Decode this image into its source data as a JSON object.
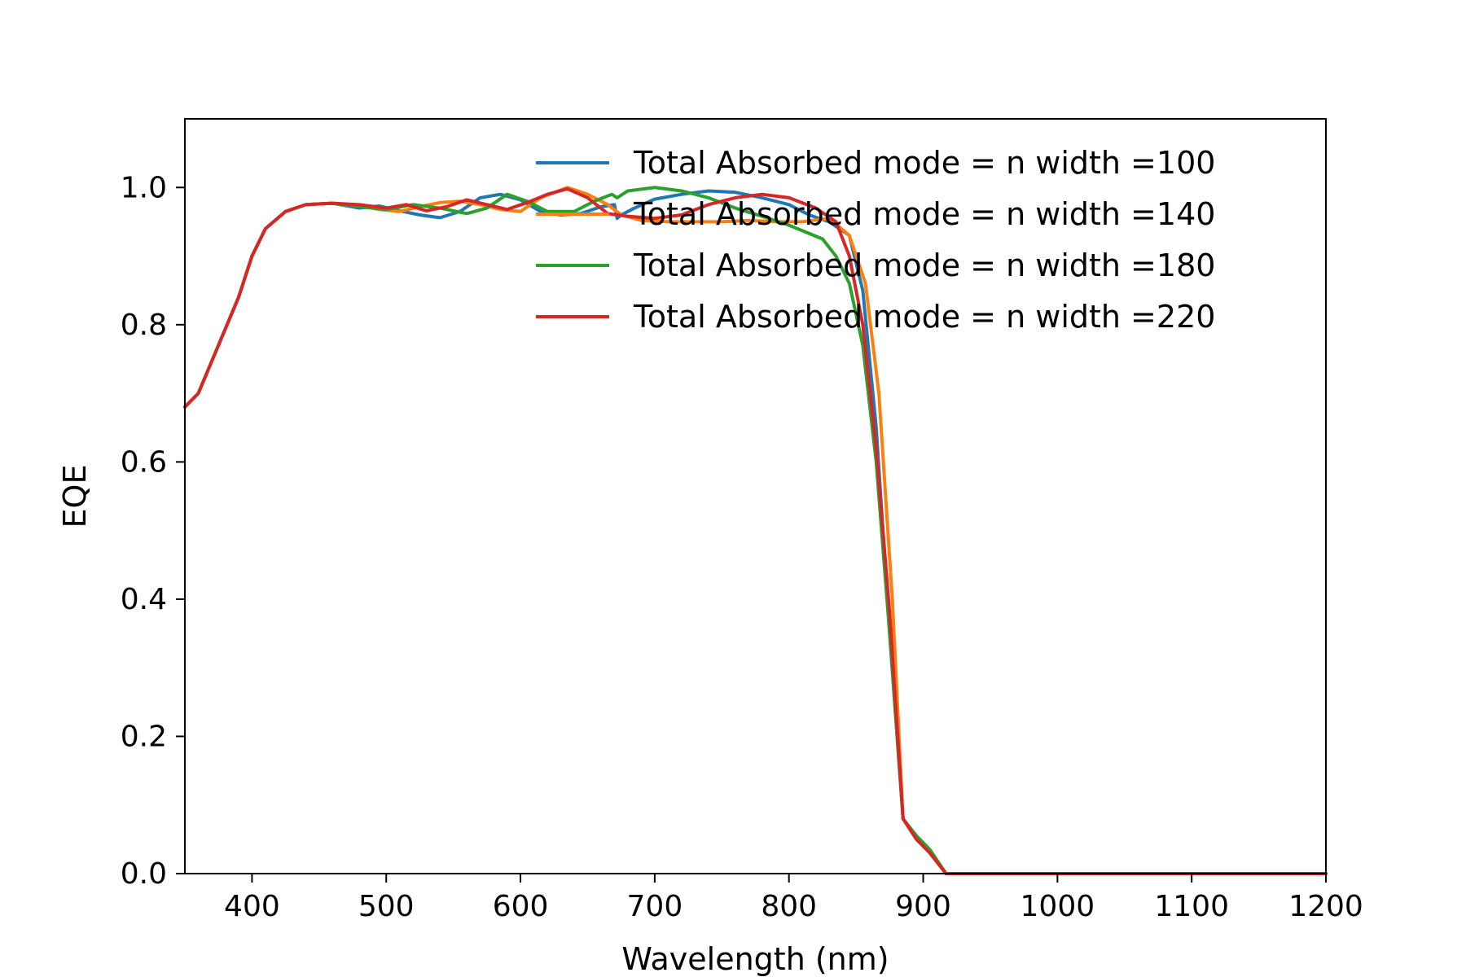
{
  "chart_data": {
    "type": "line",
    "title": "",
    "xlabel": "Wavelength (nm)",
    "ylabel": "EQE",
    "xlim": [
      350,
      1200
    ],
    "ylim": [
      0.0,
      1.1
    ],
    "xticks": [
      400,
      500,
      600,
      700,
      800,
      900,
      1000,
      1100,
      1200
    ],
    "xtick_labels": [
      "400",
      "500",
      "600",
      "700",
      "800",
      "900",
      "1000",
      "1100",
      "1200"
    ],
    "yticks": [
      0.0,
      0.2,
      0.4,
      0.6,
      0.8,
      1.0
    ],
    "ytick_labels": [
      "0.0",
      "0.2",
      "0.4",
      "0.6",
      "0.8",
      "1.0"
    ],
    "grid": false,
    "legend_position": "top-right",
    "series": [
      {
        "name": "Total Absorbed mode = n width  =100",
        "color": "#1f77b4",
        "x": [
          350,
          360,
          375,
          390,
          400,
          410,
          425,
          440,
          460,
          480,
          495,
          510,
          525,
          540,
          555,
          570,
          585,
          600,
          615,
          630,
          645,
          660,
          670,
          672,
          675,
          685,
          700,
          720,
          740,
          760,
          780,
          800,
          815,
          830,
          845,
          855,
          865,
          875,
          885,
          895,
          905,
          917,
          930,
          1000,
          1100,
          1200
        ],
        "y": [
          0.68,
          0.7,
          0.77,
          0.84,
          0.9,
          0.94,
          0.965,
          0.975,
          0.977,
          0.97,
          0.973,
          0.966,
          0.96,
          0.956,
          0.965,
          0.985,
          0.99,
          0.982,
          0.965,
          0.96,
          0.962,
          0.972,
          0.975,
          0.955,
          0.96,
          0.97,
          0.983,
          0.99,
          0.995,
          0.993,
          0.985,
          0.975,
          0.96,
          0.95,
          0.93,
          0.85,
          0.65,
          0.35,
          0.08,
          0.05,
          0.03,
          0.0,
          0.0,
          0.0,
          0.0,
          0.0
        ]
      },
      {
        "name": "Total Absorbed mode = n width  =140",
        "color": "#ff7f0e",
        "x": [
          350,
          360,
          375,
          390,
          400,
          410,
          425,
          440,
          460,
          480,
          495,
          510,
          525,
          540,
          555,
          570,
          585,
          600,
          615,
          635,
          650,
          665,
          675,
          690,
          710,
          730,
          750,
          770,
          790,
          810,
          830,
          845,
          857,
          867,
          877,
          885,
          895,
          905,
          917,
          930,
          1000,
          1100,
          1200
        ],
        "y": [
          0.68,
          0.7,
          0.77,
          0.84,
          0.9,
          0.94,
          0.965,
          0.975,
          0.977,
          0.973,
          0.968,
          0.965,
          0.972,
          0.978,
          0.98,
          0.975,
          0.968,
          0.965,
          0.985,
          1.0,
          0.99,
          0.975,
          0.96,
          0.952,
          0.95,
          0.95,
          0.95,
          0.952,
          0.95,
          0.95,
          0.955,
          0.93,
          0.86,
          0.7,
          0.4,
          0.08,
          0.05,
          0.03,
          0.0,
          0.0,
          0.0,
          0.0,
          0.0
        ]
      },
      {
        "name": "Total Absorbed mode = n width  =180",
        "color": "#2ca02c",
        "x": [
          350,
          360,
          375,
          390,
          400,
          410,
          425,
          440,
          460,
          480,
          500,
          520,
          540,
          560,
          575,
          590,
          605,
          620,
          640,
          655,
          668,
          672,
          680,
          700,
          720,
          740,
          760,
          780,
          800,
          825,
          835,
          845,
          855,
          865,
          875,
          885,
          895,
          905,
          917,
          930,
          1000,
          1100,
          1200
        ],
        "y": [
          0.68,
          0.7,
          0.77,
          0.84,
          0.9,
          0.94,
          0.965,
          0.975,
          0.977,
          0.972,
          0.968,
          0.975,
          0.97,
          0.962,
          0.97,
          0.99,
          0.98,
          0.965,
          0.965,
          0.98,
          0.99,
          0.985,
          0.995,
          1.0,
          0.995,
          0.985,
          0.97,
          0.958,
          0.945,
          0.925,
          0.9,
          0.86,
          0.77,
          0.6,
          0.35,
          0.08,
          0.055,
          0.035,
          0.0,
          0.0,
          0.0,
          0.0,
          0.0
        ]
      },
      {
        "name": "Total Absorbed mode = n width  =220",
        "color": "#d62728",
        "x": [
          350,
          360,
          375,
          390,
          400,
          410,
          425,
          440,
          460,
          480,
          500,
          515,
          530,
          545,
          560,
          575,
          590,
          605,
          620,
          635,
          650,
          665,
          680,
          700,
          720,
          740,
          760,
          780,
          800,
          820,
          835,
          845,
          855,
          865,
          875,
          885,
          895,
          905,
          917,
          930,
          1000,
          1100,
          1200
        ],
        "y": [
          0.68,
          0.7,
          0.77,
          0.84,
          0.9,
          0.94,
          0.965,
          0.975,
          0.977,
          0.975,
          0.97,
          0.975,
          0.966,
          0.972,
          0.982,
          0.975,
          0.968,
          0.978,
          0.99,
          0.998,
          0.985,
          0.962,
          0.958,
          0.955,
          0.96,
          0.975,
          0.985,
          0.99,
          0.985,
          0.97,
          0.95,
          0.9,
          0.8,
          0.62,
          0.38,
          0.08,
          0.05,
          0.03,
          0.0,
          0.0,
          0.0,
          0.0,
          0.0
        ]
      }
    ]
  }
}
